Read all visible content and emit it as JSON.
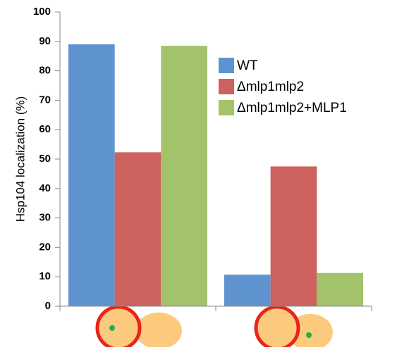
{
  "chart_data": {
    "type": "bar",
    "y_label": "Hsp104 localization (%)",
    "categories": [
      null,
      null
    ],
    "series": [
      {
        "name": "WT",
        "color": "#5f93cf",
        "values": [
          89,
          10.7
        ]
      },
      {
        "name": "Δmlp1mlp2",
        "color": "#cc615d",
        "values": [
          52.3,
          47.5
        ]
      },
      {
        "name": "Δmlp1mlp2+MLP1",
        "color": "#a3c36b",
        "values": [
          88.5,
          11.3
        ]
      }
    ],
    "ylim": [
      0,
      100
    ],
    "yticks": [
      0,
      10,
      20,
      30,
      40,
      50,
      60,
      70,
      80,
      90,
      100
    ],
    "grid": false,
    "legend": "right"
  }
}
